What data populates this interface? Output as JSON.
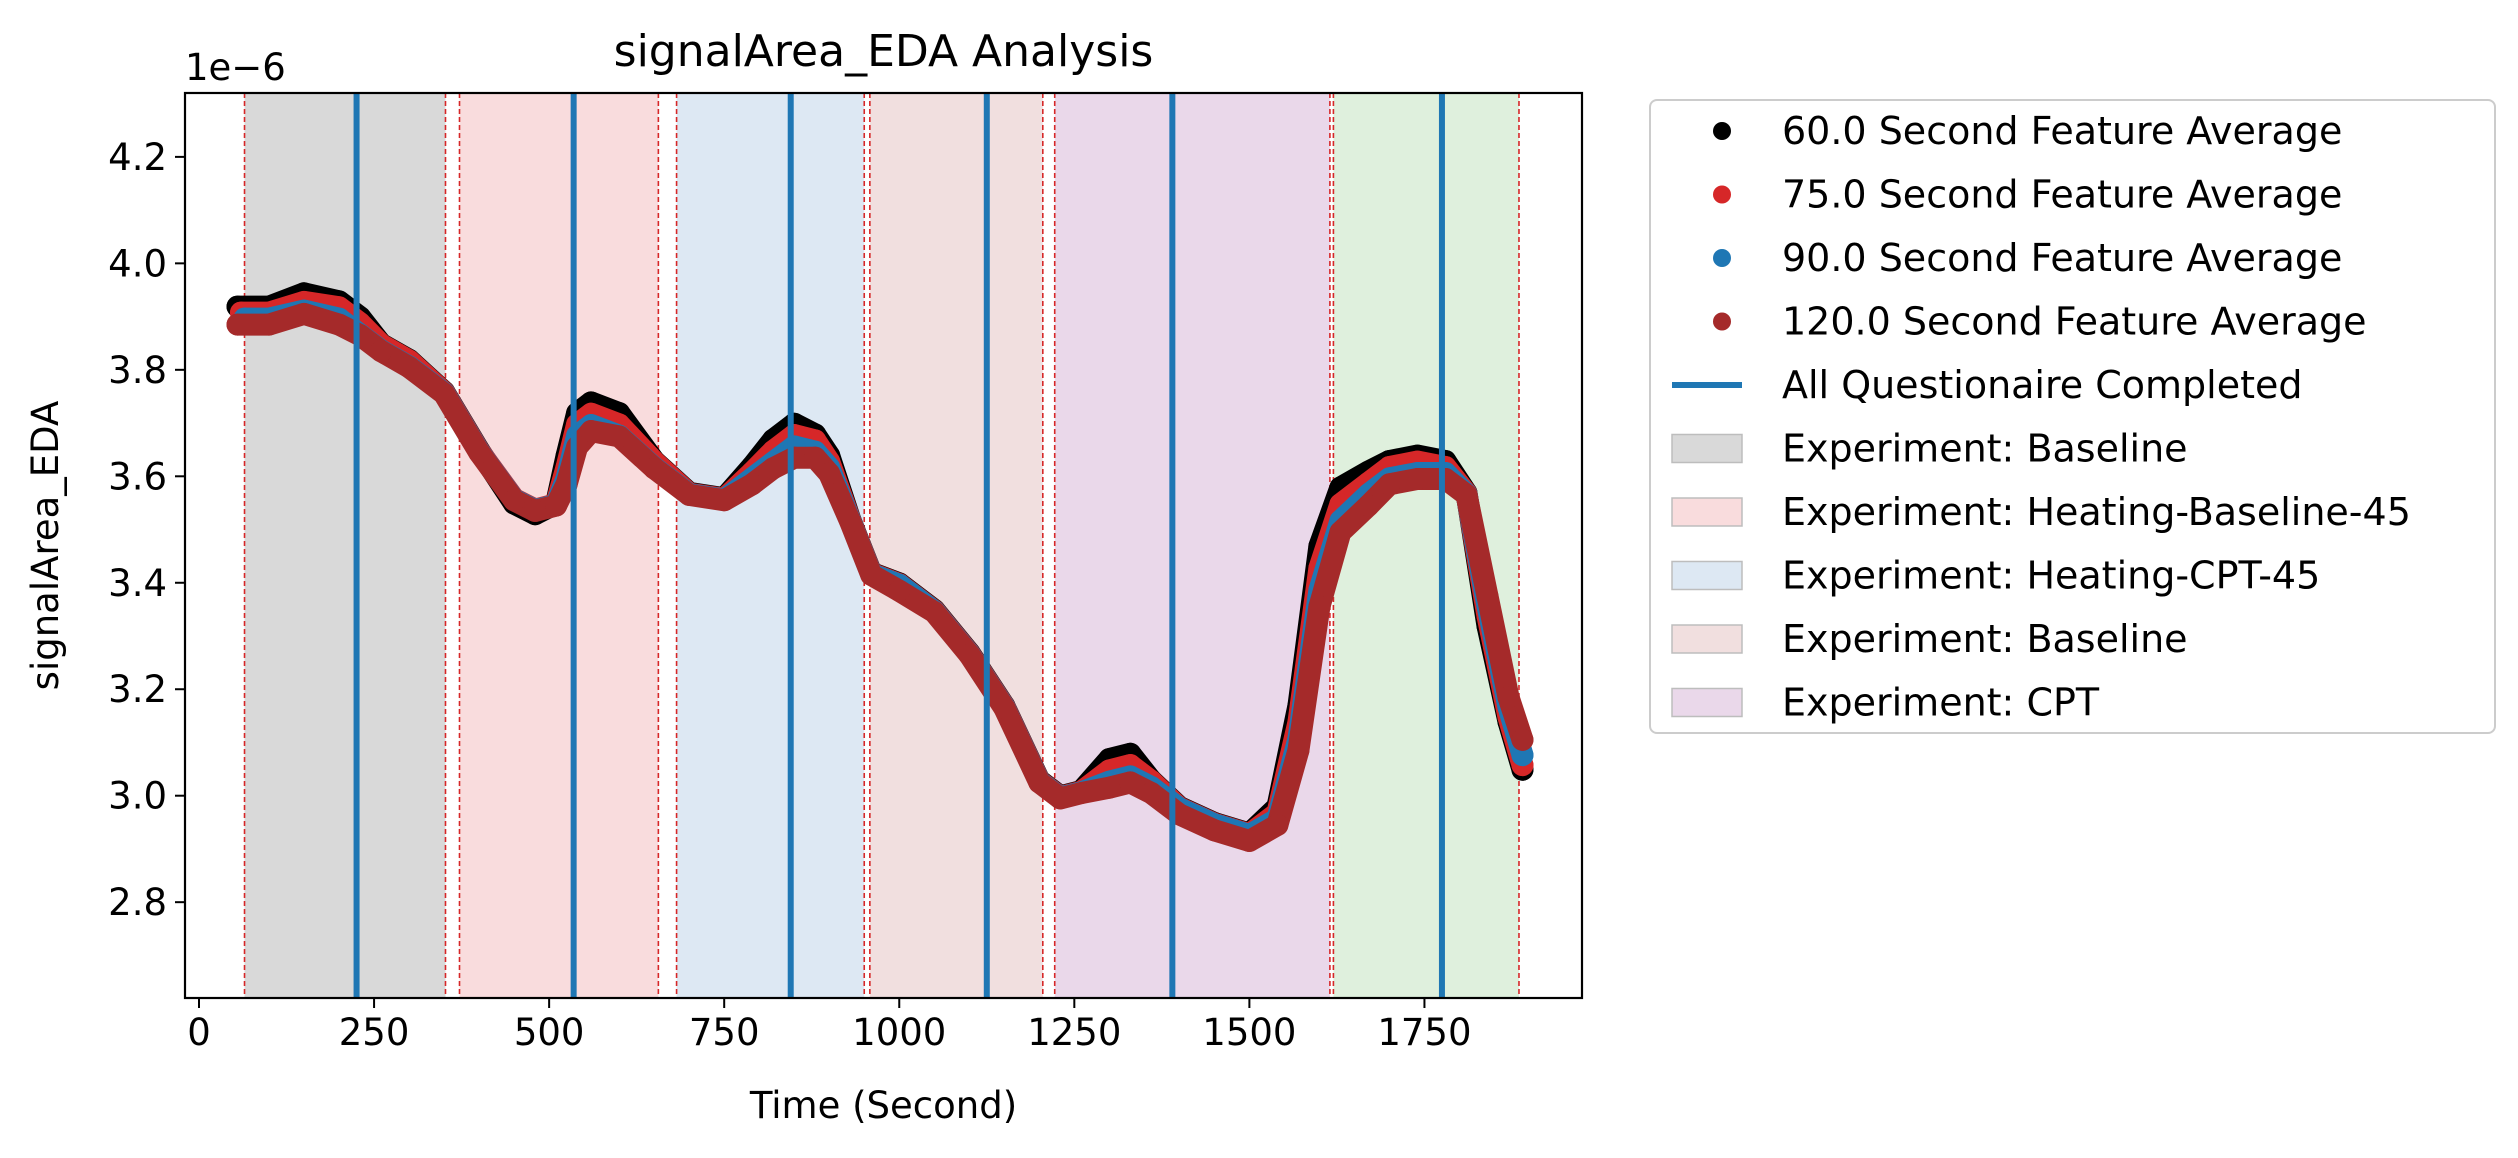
{
  "chart_data": {
    "type": "line",
    "title": "signalArea_EDA Analysis",
    "xlabel": "Time (Second)",
    "ylabel": "signalArea_EDA",
    "y_multiplier_label": "1e−6",
    "xlim": [
      -20,
      1975
    ],
    "ylim": [
      2.62,
      4.32
    ],
    "x_ticks": [
      0,
      250,
      500,
      750,
      1000,
      1250,
      1500,
      1750
    ],
    "y_ticks": [
      2.8,
      3.0,
      3.2,
      3.4,
      3.6,
      3.8,
      4.0,
      4.2
    ],
    "y_tick_labels": [
      "2.8",
      "3.0",
      "3.2",
      "3.4",
      "3.6",
      "3.8",
      "4.0",
      "4.2"
    ],
    "grid": false,
    "legend_position": "outside-right",
    "series": [
      {
        "name": "60.0 Second Feature Average",
        "color": "#000000",
        "marker": "dot",
        "offset": -10,
        "x": [
          55,
          100,
          150,
          200,
          230,
          260,
          300,
          350,
          400,
          450,
          480,
          510,
          525,
          540,
          560,
          600,
          650,
          700,
          750,
          790,
          820,
          850,
          880,
          900,
          930,
          960,
          1000,
          1050,
          1100,
          1150,
          1200,
          1230,
          1260,
          1300,
          1330,
          1360,
          1400,
          1450,
          1500,
          1540,
          1570,
          1600,
          1630,
          1670,
          1700,
          1740,
          1780,
          1810,
          1840,
          1870,
          1890
        ],
        "y": [
          3.9,
          3.9,
          3.925,
          3.91,
          3.88,
          3.83,
          3.8,
          3.74,
          3.63,
          3.53,
          3.51,
          3.53,
          3.62,
          3.7,
          3.72,
          3.7,
          3.61,
          3.55,
          3.54,
          3.6,
          3.65,
          3.68,
          3.66,
          3.62,
          3.5,
          3.4,
          3.38,
          3.33,
          3.25,
          3.15,
          3.01,
          2.98,
          2.99,
          3.05,
          3.06,
          3.01,
          2.96,
          2.93,
          2.91,
          2.96,
          3.15,
          3.45,
          3.56,
          3.59,
          3.61,
          3.62,
          3.61,
          3.55,
          3.3,
          3.12,
          3.03
        ]
      },
      {
        "name": "75.0 Second Feature Average",
        "color": "#d62728",
        "marker": "dot",
        "offset": -4,
        "x": [
          60,
          100,
          150,
          200,
          230,
          260,
          300,
          350,
          400,
          450,
          480,
          510,
          525,
          540,
          560,
          600,
          650,
          700,
          750,
          790,
          820,
          850,
          880,
          900,
          930,
          960,
          1000,
          1050,
          1100,
          1150,
          1200,
          1230,
          1260,
          1300,
          1330,
          1360,
          1400,
          1450,
          1500,
          1540,
          1570,
          1600,
          1630,
          1670,
          1700,
          1740,
          1780,
          1810,
          1840,
          1870,
          1890
        ],
        "y": [
          3.9,
          3.9,
          3.92,
          3.91,
          3.88,
          3.84,
          3.81,
          3.75,
          3.64,
          3.55,
          3.53,
          3.54,
          3.61,
          3.69,
          3.71,
          3.69,
          3.62,
          3.56,
          3.55,
          3.6,
          3.64,
          3.67,
          3.66,
          3.62,
          3.51,
          3.41,
          3.39,
          3.34,
          3.26,
          3.16,
          3.02,
          2.99,
          3.0,
          3.04,
          3.05,
          3.02,
          2.97,
          2.94,
          2.92,
          2.96,
          3.13,
          3.42,
          3.54,
          3.58,
          3.61,
          3.62,
          3.61,
          3.56,
          3.33,
          3.14,
          3.05
        ]
      },
      {
        "name": "90.0 Second Feature Average",
        "color": "#1f77b4",
        "marker": "dot",
        "offset": 2,
        "x": [
          65,
          100,
          150,
          200,
          230,
          260,
          300,
          350,
          400,
          450,
          480,
          510,
          525,
          540,
          560,
          600,
          650,
          700,
          750,
          790,
          820,
          850,
          880,
          900,
          930,
          960,
          1000,
          1050,
          1100,
          1150,
          1200,
          1230,
          1260,
          1300,
          1330,
          1360,
          1400,
          1450,
          1500,
          1540,
          1570,
          1600,
          1630,
          1670,
          1700,
          1740,
          1780,
          1810,
          1840,
          1870,
          1890
        ],
        "y": [
          3.9,
          3.9,
          3.915,
          3.9,
          3.87,
          3.84,
          3.81,
          3.76,
          3.65,
          3.56,
          3.54,
          3.55,
          3.6,
          3.68,
          3.7,
          3.68,
          3.62,
          3.57,
          3.56,
          3.6,
          3.63,
          3.66,
          3.65,
          3.62,
          3.52,
          3.42,
          3.4,
          3.35,
          3.27,
          3.17,
          3.03,
          3.0,
          3.01,
          3.03,
          3.04,
          3.02,
          2.98,
          2.95,
          2.93,
          2.96,
          3.11,
          3.39,
          3.52,
          3.57,
          3.6,
          3.61,
          3.61,
          3.57,
          3.36,
          3.17,
          3.08
        ]
      },
      {
        "name": "120.0 Second Feature Average",
        "color": "#a52a2a",
        "marker": "dot",
        "offset": 8,
        "x": [
          55,
          100,
          150,
          200,
          230,
          260,
          300,
          350,
          400,
          450,
          480,
          510,
          525,
          540,
          560,
          600,
          650,
          700,
          750,
          790,
          820,
          850,
          880,
          900,
          930,
          960,
          1000,
          1050,
          1100,
          1150,
          1200,
          1230,
          1260,
          1300,
          1330,
          1360,
          1400,
          1450,
          1500,
          1540,
          1570,
          1600,
          1630,
          1670,
          1700,
          1740,
          1780,
          1810,
          1840,
          1870,
          1890
        ],
        "y": [
          3.9,
          3.9,
          3.92,
          3.9,
          3.88,
          3.85,
          3.82,
          3.77,
          3.66,
          3.57,
          3.55,
          3.56,
          3.6,
          3.67,
          3.7,
          3.69,
          3.63,
          3.58,
          3.57,
          3.6,
          3.63,
          3.65,
          3.65,
          3.62,
          3.53,
          3.43,
          3.4,
          3.36,
          3.28,
          3.18,
          3.04,
          3.01,
          3.02,
          3.03,
          3.04,
          3.02,
          2.98,
          2.95,
          2.93,
          2.96,
          3.1,
          3.37,
          3.51,
          3.56,
          3.6,
          3.61,
          3.61,
          3.58,
          3.39,
          3.2,
          3.12
        ]
      }
    ],
    "questionnaire_lines": {
      "name": "All Questionaire Completed",
      "color": "#1f77b4",
      "x": [
        225,
        535,
        845,
        1125,
        1390,
        1775
      ]
    },
    "experiment_bands": [
      {
        "label": "Experiment: Baseline",
        "x0": 65,
        "x1": 352,
        "color": "#d9d9d9",
        "in_legend": true
      },
      {
        "label": "Experiment: Heating-Baseline-45",
        "x0": 372,
        "x1": 656,
        "color": "#f9dcdd",
        "in_legend": true
      },
      {
        "label": "Experiment: Heating-CPT-45",
        "x0": 682,
        "x1": 950,
        "color": "#dde8f3",
        "in_legend": true
      },
      {
        "label": "Experiment: Baseline",
        "x0": 958,
        "x1": 1205,
        "color": "#f1dfdf",
        "in_legend": true
      },
      {
        "label": "Experiment: CPT",
        "x0": 1222,
        "x1": 1615,
        "color": "#ead8ea",
        "in_legend": true
      },
      {
        "label": "",
        "x0": 1620,
        "x1": 1885,
        "color": "#dff0dd",
        "in_legend": false
      }
    ],
    "boundary_lines": {
      "color": "#d62728",
      "x": [
        65,
        352,
        372,
        656,
        682,
        950,
        958,
        1205,
        1222,
        1615,
        1620,
        1885
      ]
    },
    "legend_entries": [
      "60.0 Second Feature Average",
      "75.0 Second Feature Average",
      "90.0 Second Feature Average",
      "120.0 Second Feature Average",
      "All Questionaire Completed",
      "Experiment: Baseline",
      "Experiment: Heating-Baseline-45",
      "Experiment: Heating-CPT-45",
      "Experiment: Baseline",
      "Experiment: CPT"
    ]
  }
}
